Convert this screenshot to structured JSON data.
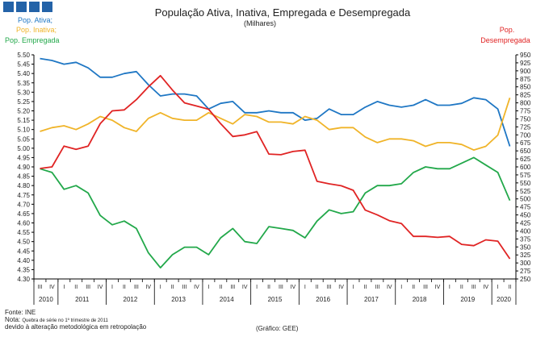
{
  "chart_data": {
    "type": "line",
    "title": "População Ativa, Inativa, Empregada  e Desempregada",
    "subtitle": "(Milhares)",
    "left_axis": {
      "ylim": [
        4.3,
        5.5
      ],
      "ticks": [
        "4.30",
        "4.35",
        "4.40",
        "4.45",
        "4.50",
        "4.55",
        "4.60",
        "4.65",
        "4.70",
        "4.75",
        "4.80",
        "4.85",
        "4.90",
        "4.95",
        "5.00",
        "5.05",
        "5.10",
        "5.15",
        "5.20",
        "5.25",
        "5.30",
        "5.35",
        "5.40",
        "5.45",
        "5.50"
      ]
    },
    "right_axis": {
      "ylim": [
        250,
        950
      ],
      "ticks": [
        "250",
        "275",
        "300",
        "325",
        "350",
        "375",
        "400",
        "425",
        "450",
        "475",
        "500",
        "525",
        "550",
        "575",
        "600",
        "625",
        "650",
        "675",
        "700",
        "725",
        "750",
        "775",
        "800",
        "825",
        "850",
        "875",
        "900",
        "925",
        "950"
      ]
    },
    "x_quarters": [
      "III",
      "IV",
      "I",
      "II",
      "III",
      "IV",
      "I",
      "II",
      "III",
      "IV",
      "I",
      "II",
      "III",
      "IV",
      "I",
      "II",
      "III",
      "IV",
      "I",
      "II",
      "III",
      "IV",
      "I",
      "II",
      "III",
      "IV",
      "I",
      "II",
      "III",
      "IV",
      "I",
      "II",
      "III",
      "IV",
      "I",
      "II",
      "III",
      "IV",
      "I",
      "II"
    ],
    "x_years": [
      {
        "label": "2010",
        "start": 0,
        "end": 1
      },
      {
        "label": "2011",
        "start": 2,
        "end": 5
      },
      {
        "label": "2012",
        "start": 6,
        "end": 9
      },
      {
        "label": "2013",
        "start": 10,
        "end": 13
      },
      {
        "label": "2014",
        "start": 14,
        "end": 17
      },
      {
        "label": "2015",
        "start": 18,
        "end": 21
      },
      {
        "label": "2016",
        "start": 22,
        "end": 25
      },
      {
        "label": "2017",
        "start": 26,
        "end": 29
      },
      {
        "label": "2018",
        "start": 30,
        "end": 33
      },
      {
        "label": "2019",
        "start": 34,
        "end": 37
      },
      {
        "label": "2020",
        "start": 38,
        "end": 39
      }
    ],
    "grid": false,
    "legend_placement": "top-left (left-axis series), top-right (right-axis series)",
    "series": [
      {
        "name": "Pop. Ativa",
        "axis": "left",
        "color": "#1f77c4",
        "values": [
          5.48,
          5.47,
          5.45,
          5.46,
          5.43,
          5.38,
          5.38,
          5.4,
          5.41,
          5.34,
          5.28,
          5.29,
          5.29,
          5.28,
          5.21,
          5.24,
          5.25,
          5.19,
          5.19,
          5.2,
          5.19,
          5.19,
          5.15,
          5.16,
          5.21,
          5.18,
          5.18,
          5.22,
          5.25,
          5.23,
          5.22,
          5.23,
          5.26,
          5.23,
          5.23,
          5.24,
          5.27,
          5.26,
          5.21,
          5.01
        ]
      },
      {
        "name": "Pop. Inativa",
        "axis": "left",
        "color": "#f0b429",
        "values": [
          5.09,
          5.11,
          5.12,
          5.1,
          5.13,
          5.17,
          5.15,
          5.11,
          5.09,
          5.16,
          5.19,
          5.16,
          5.15,
          5.15,
          5.19,
          5.16,
          5.13,
          5.18,
          5.17,
          5.14,
          5.14,
          5.13,
          5.17,
          5.15,
          5.1,
          5.11,
          5.11,
          5.06,
          5.03,
          5.05,
          5.05,
          5.04,
          5.01,
          5.03,
          5.03,
          5.02,
          4.99,
          5.01,
          5.07,
          5.27
        ]
      },
      {
        "name": "Pop. Empregada",
        "axis": "left",
        "color": "#22a84a",
        "values": [
          4.89,
          4.87,
          4.78,
          4.8,
          4.76,
          4.64,
          4.59,
          4.61,
          4.57,
          4.44,
          4.36,
          4.43,
          4.47,
          4.47,
          4.43,
          4.52,
          4.57,
          4.5,
          4.49,
          4.58,
          4.57,
          4.56,
          4.52,
          4.61,
          4.67,
          4.65,
          4.66,
          4.76,
          4.8,
          4.8,
          4.81,
          4.87,
          4.9,
          4.89,
          4.89,
          4.92,
          4.95,
          4.91,
          4.87,
          4.72
        ]
      },
      {
        "name": "Pop. Desempregada",
        "axis": "right",
        "color": "#e02424",
        "values": [
          595,
          600,
          665,
          655,
          665,
          735,
          775,
          778,
          810,
          850,
          885,
          840,
          800,
          790,
          780,
          735,
          695,
          700,
          710,
          640,
          638,
          648,
          652,
          555,
          547,
          541,
          527,
          465,
          450,
          432,
          423,
          383,
          383,
          380,
          383,
          358,
          354,
          372,
          368,
          313
        ]
      }
    ],
    "annotations": [
      {
        "text": "Pop. Ativa;",
        "color": "#1f77c4"
      },
      {
        "text": "Pop. Inativa;",
        "color": "#f0b429"
      },
      {
        "text": "Pop. Empregada",
        "color": "#22a84a"
      },
      {
        "text": "Pop.",
        "color": "#e02424"
      },
      {
        "text": "Desempregada",
        "color": "#e02424"
      }
    ]
  },
  "header_swatches": {
    "color": "#2463a8",
    "count": 4
  },
  "footer": {
    "source": "Fonte: INE",
    "note_prefix": "Nota:",
    "note_rest": "Quebra de série no 1º trimestre de 2011",
    "note_line2": "devido à alteração metodológica em retropolação",
    "credit": "(Gráfico: GEE)"
  }
}
